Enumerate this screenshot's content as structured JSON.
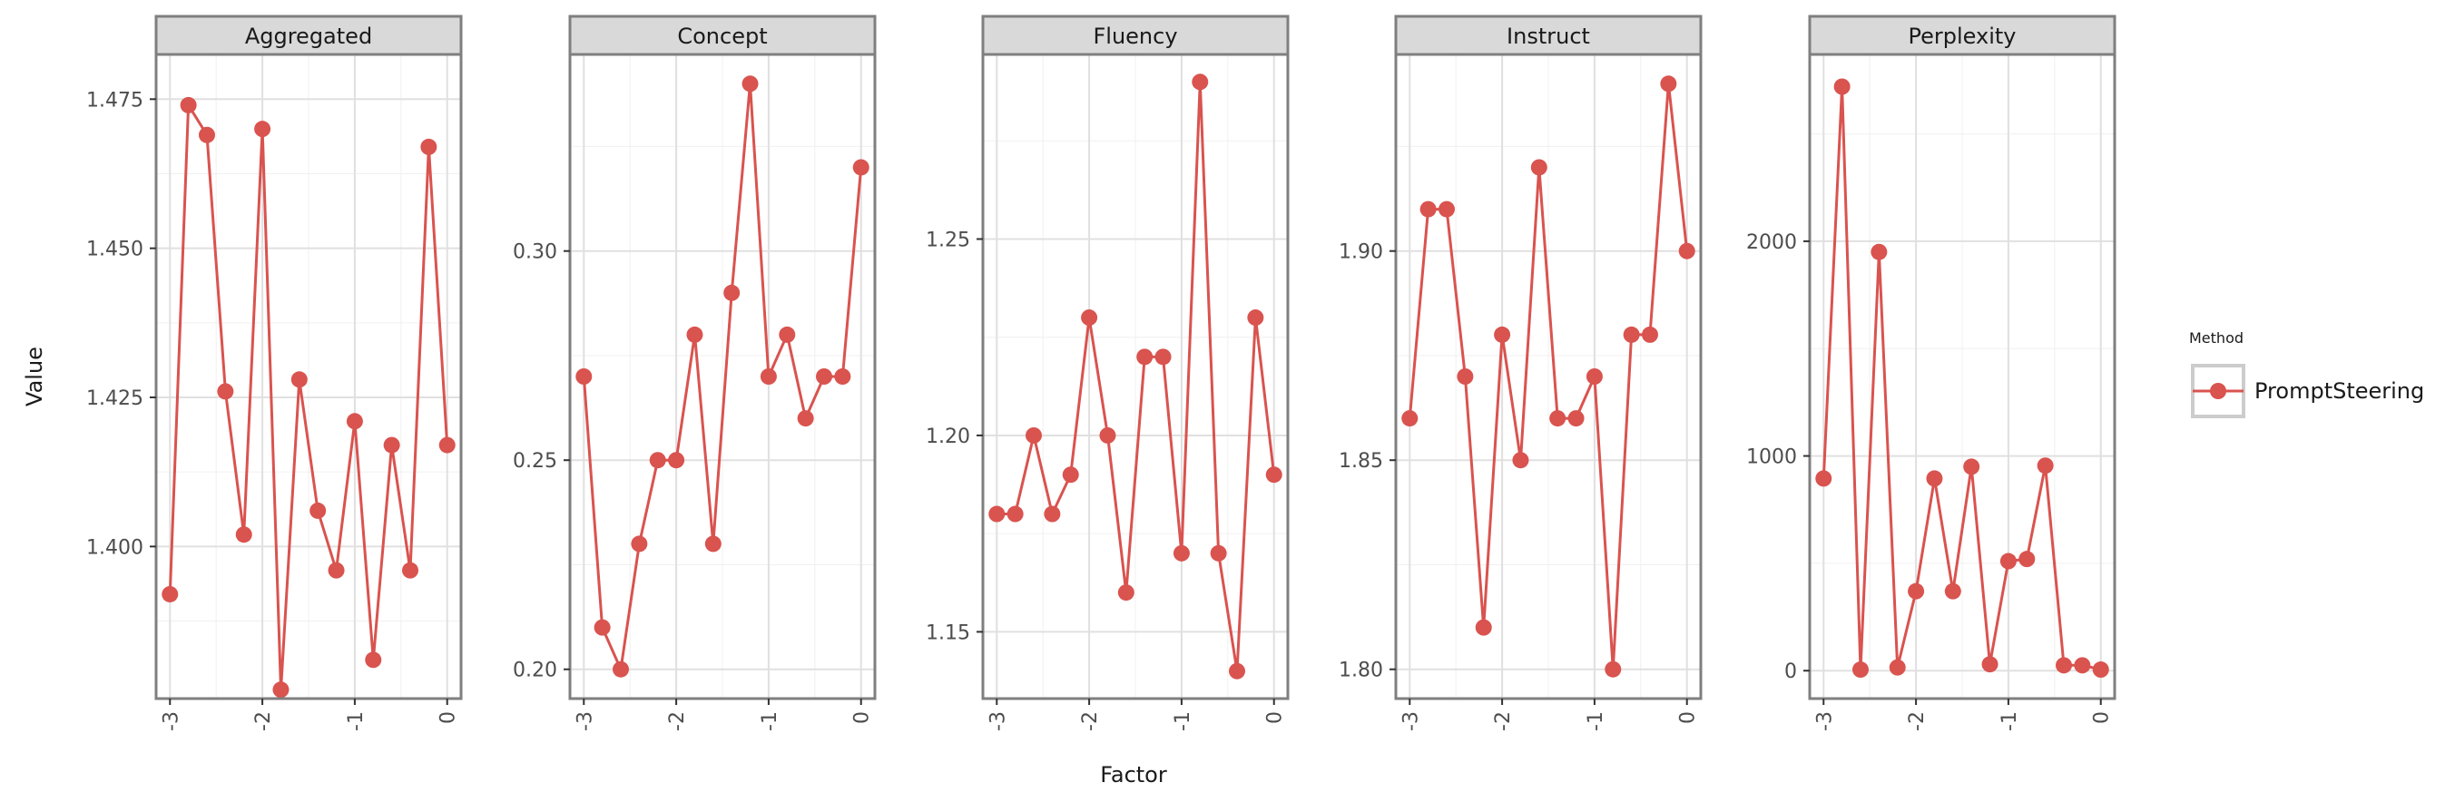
{
  "chart_data": {
    "type": "line",
    "xlabel": "Factor",
    "ylabel": "Value",
    "legend": {
      "title": "Method",
      "placement": "right"
    },
    "color": "#d9534f",
    "x_ticks": [
      -3,
      -2,
      -1,
      0
    ],
    "x_tick_labels": [
      "-3",
      "-2",
      "-1",
      "0"
    ],
    "x": [
      -3.0,
      -2.8,
      -2.6,
      -2.4,
      -2.2,
      -2.0,
      -1.8,
      -1.6,
      -1.4,
      -1.2,
      -1.0,
      -0.8,
      -0.6,
      -0.4,
      -0.2,
      0.0
    ],
    "facets": [
      {
        "title": "Aggregated",
        "ylim": [
          1.3745,
          1.4825
        ],
        "y_ticks": [
          1.4,
          1.425,
          1.45,
          1.475
        ],
        "y_tick_labels": [
          "1.400",
          "1.425",
          "1.450",
          "1.475"
        ],
        "series": [
          {
            "name": "PromptSteering",
            "values": [
              1.392,
              1.474,
              1.469,
              1.426,
              1.402,
              1.47,
              1.376,
              1.428,
              1.406,
              1.396,
              1.421,
              1.381,
              1.417,
              1.396,
              1.467,
              1.417
            ]
          }
        ]
      },
      {
        "title": "Concept",
        "ylim": [
          0.193,
          0.347
        ],
        "y_ticks": [
          0.2,
          0.25,
          0.3
        ],
        "y_tick_labels": [
          "0.20",
          "0.25",
          "0.30"
        ],
        "series": [
          {
            "name": "PromptSteering",
            "values": [
              0.27,
              0.21,
              0.2,
              0.23,
              0.25,
              0.25,
              0.28,
              0.23,
              0.29,
              0.34,
              0.27,
              0.28,
              0.26,
              0.27,
              0.27,
              0.32
            ]
          }
        ]
      },
      {
        "title": "Fluency",
        "ylim": [
          1.133,
          1.297
        ],
        "y_ticks": [
          1.15,
          1.2,
          1.25
        ],
        "y_tick_labels": [
          "1.15",
          "1.20",
          "1.25"
        ],
        "series": [
          {
            "name": "PromptSteering",
            "values": [
              1.18,
              1.18,
              1.2,
              1.18,
              1.19,
              1.23,
              1.2,
              1.16,
              1.22,
              1.22,
              1.17,
              1.29,
              1.17,
              1.14,
              1.23,
              1.19
            ]
          }
        ]
      },
      {
        "title": "Instruct",
        "ylim": [
          1.793,
          1.947
        ],
        "y_ticks": [
          1.8,
          1.85,
          1.9
        ],
        "y_tick_labels": [
          "1.80",
          "1.85",
          "1.90"
        ],
        "series": [
          {
            "name": "PromptSteering",
            "values": [
              1.86,
              1.91,
              1.91,
              1.87,
              1.81,
              1.88,
              1.85,
              1.92,
              1.86,
              1.86,
              1.87,
              1.8,
              1.88,
              1.88,
              1.94,
              1.9
            ]
          }
        ]
      },
      {
        "title": "Perplexity",
        "ylim": [
          -130,
          2870
        ],
        "y_ticks": [
          0,
          1000,
          2000
        ],
        "y_tick_labels": [
          "0",
          "1000",
          "2000"
        ],
        "series": [
          {
            "name": "PromptSteering",
            "values": [
              895,
              2720,
              5,
              1950,
              15,
              370,
              895,
              370,
              950,
              30,
              510,
              520,
              955,
              25,
              25,
              5
            ]
          }
        ]
      }
    ]
  }
}
